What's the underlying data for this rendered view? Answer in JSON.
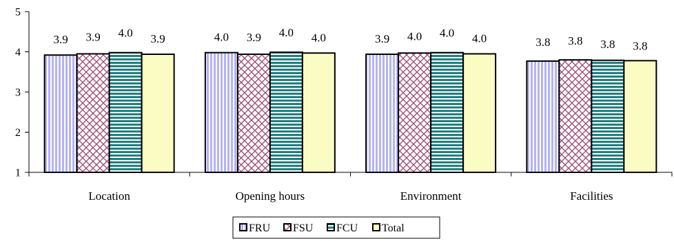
{
  "chart_data": {
    "type": "bar",
    "categories": [
      "Location",
      "Opening hours",
      "Environment",
      "Facilities"
    ],
    "series": [
      {
        "name": "FRU",
        "values": [
          3.92,
          3.98,
          3.94,
          3.77
        ],
        "labels": [
          "3.9",
          "4.0",
          "3.9",
          "3.8"
        ],
        "pattern": "vertical-stripes",
        "color": "#b3b3f5"
      },
      {
        "name": "FSU",
        "values": [
          3.95,
          3.94,
          3.97,
          3.8
        ],
        "labels": [
          "3.9",
          "3.9",
          "4.0",
          "3.8"
        ],
        "pattern": "crosshatch",
        "color": "#a05078"
      },
      {
        "name": "FCU",
        "values": [
          3.98,
          3.99,
          3.98,
          3.79
        ],
        "labels": [
          "4.0",
          "4.0",
          "4.0",
          "3.8"
        ],
        "pattern": "horizontal-stripes",
        "color": "#1f7f7f"
      },
      {
        "name": "Total",
        "values": [
          3.94,
          3.97,
          3.95,
          3.78
        ],
        "labels": [
          "3.9",
          "4.0",
          "4.0",
          "3.8"
        ],
        "pattern": "solid",
        "color": "#fbfbc4"
      }
    ],
    "y_ticks": [
      "1",
      "2",
      "3",
      "4",
      "5"
    ],
    "ylim": [
      1,
      5
    ],
    "grid": false,
    "legend_position": "bottom",
    "title": "",
    "xlabel": "",
    "ylabel": ""
  }
}
